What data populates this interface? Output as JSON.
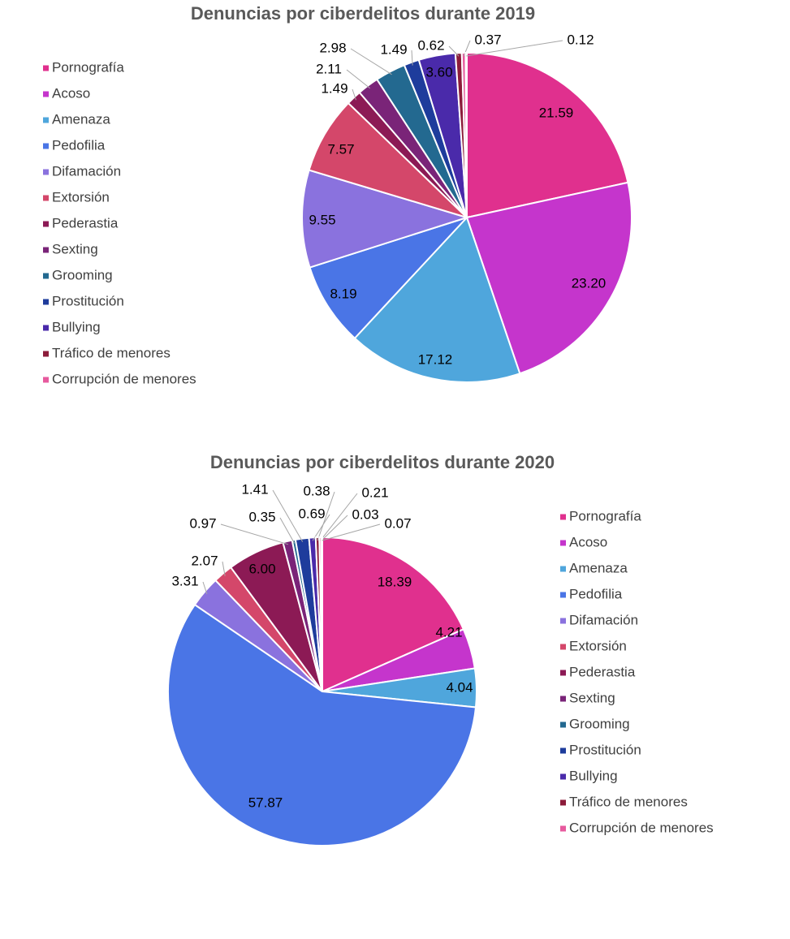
{
  "chart_data": [
    {
      "type": "pie",
      "title": "Denuncias por ciberdelitos durante 2019",
      "categories": [
        "Pornografía",
        "Acoso",
        "Amenaza",
        "Pedofilia",
        "Difamación",
        "Extorsión",
        "Pederastia",
        "Sexting",
        "Grooming",
        "Prostitución",
        "Bullying",
        "Tráfico de menores",
        "Corrupción de menores",
        null
      ],
      "values": [
        21.59,
        23.2,
        17.12,
        8.19,
        9.55,
        7.57,
        1.49,
        2.11,
        2.98,
        1.49,
        3.6,
        0.62,
        0.37,
        0.12
      ],
      "value_labels": [
        "21.59",
        "23.20",
        "17.12",
        "8.19",
        "9.55",
        "7.57",
        "1.49",
        "2.11",
        "2.98",
        "1.49",
        "3.60",
        "0.62",
        "0.37",
        "0.12"
      ],
      "colors": [
        "#e0308e",
        "#c535cc",
        "#4fa6dc",
        "#4a75e6",
        "#8a72de",
        "#d4476a",
        "#8c1a55",
        "#7a2478",
        "#236990",
        "#1e3c9c",
        "#4a2aaa",
        "#8c1c3a",
        "#e75a9e",
        "#c0c0c0"
      ],
      "legend": "left"
    },
    {
      "type": "pie",
      "title": "Denuncias por ciberdelitos durante 2020",
      "categories": [
        "Pornografía",
        "Acoso",
        "Amenaza",
        "Pedofilia",
        "Difamación",
        "Extorsión",
        "Pederastia",
        "Sexting",
        "Grooming",
        "Prostitución",
        "Bullying",
        "Tráfico de menores",
        "Corrupción de menores",
        null,
        null
      ],
      "values": [
        18.39,
        4.21,
        4.04,
        57.87,
        3.31,
        2.07,
        6.0,
        0.97,
        0.35,
        1.41,
        0.69,
        0.38,
        0.21,
        0.03,
        0.07
      ],
      "value_labels": [
        "18.39",
        "4.21",
        "4.04",
        "57.87",
        "3.31",
        "2.07",
        "6.00",
        "0.97",
        "0.35",
        "1.41",
        "0.69",
        "0.38",
        "0.21",
        "0.03",
        "0.07"
      ],
      "colors": [
        "#e0308e",
        "#c535cc",
        "#4fa6dc",
        "#4a75e6",
        "#8a72de",
        "#d4476a",
        "#8c1a55",
        "#7a2478",
        "#236990",
        "#1e3c9c",
        "#4a2aaa",
        "#8c1c3a",
        "#e75a9e",
        "#c0c0c0",
        "#a0a0a0"
      ],
      "legend": "right"
    }
  ]
}
